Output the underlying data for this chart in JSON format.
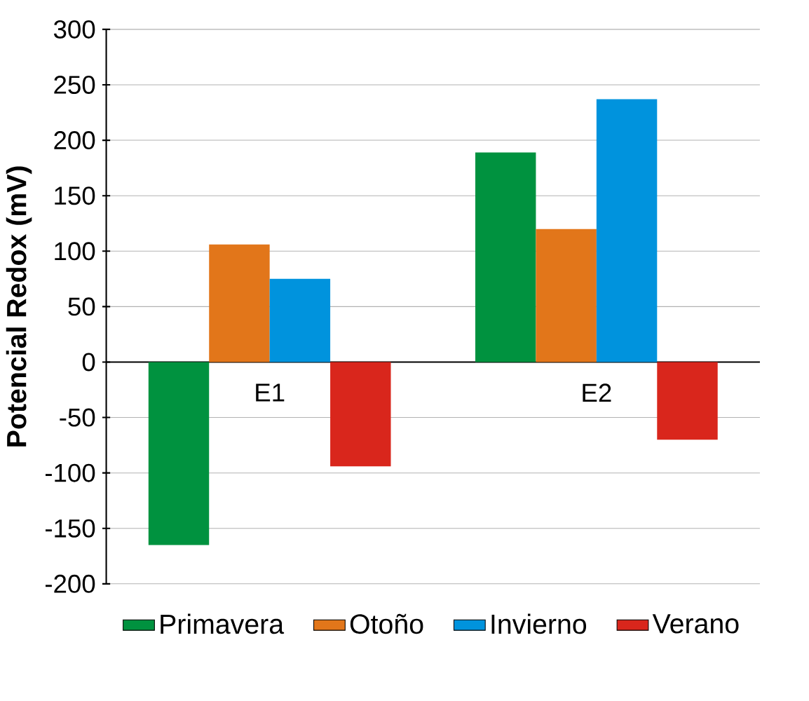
{
  "chart_data": {
    "type": "bar",
    "ylabel": "Potencial Redox (mV)",
    "categories": [
      "E1",
      "E2"
    ],
    "series": [
      {
        "name": "Primavera",
        "color": "#00923f",
        "values": [
          -165,
          189
        ]
      },
      {
        "name": "Otoño",
        "color": "#e2761a",
        "values": [
          106,
          120
        ]
      },
      {
        "name": "Invierno",
        "color": "#0093dd",
        "values": [
          75,
          237
        ]
      },
      {
        "name": "Verano",
        "color": "#d9261c",
        "values": [
          -94,
          -70
        ]
      }
    ],
    "ylim": [
      -200,
      300
    ],
    "yticks": [
      -200,
      -150,
      -100,
      -50,
      0,
      50,
      100,
      150,
      200,
      250,
      300
    ],
    "grid": "y",
    "legend": "bottom"
  }
}
